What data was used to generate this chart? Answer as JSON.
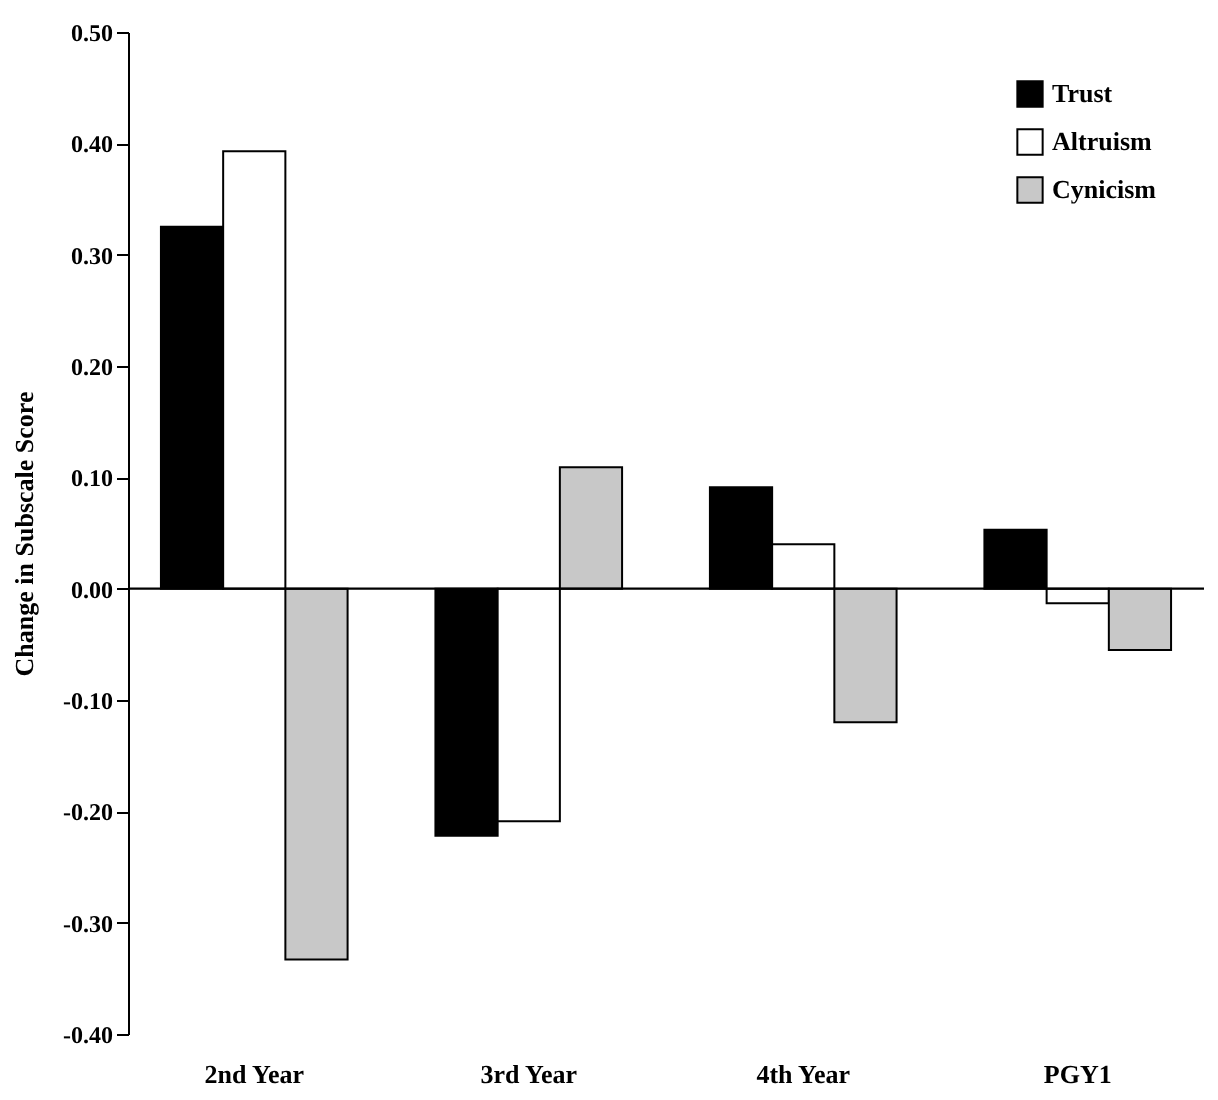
{
  "chart_data": {
    "type": "bar",
    "ylabel": "Change in Subscale Score",
    "categories": [
      "2nd Year",
      "3rd Year",
      "4th Year",
      "PGY1"
    ],
    "series": [
      {
        "name": "Trust",
        "color": "#000000",
        "values": [
          0.325,
          -0.222,
          0.091,
          0.053
        ]
      },
      {
        "name": "Altruism",
        "color": "#ffffff",
        "values": [
          0.393,
          -0.209,
          0.04,
          -0.013
        ]
      },
      {
        "name": "Cynicism",
        "color": "#c8c8c8",
        "values": [
          -0.333,
          0.109,
          -0.12,
          -0.055
        ]
      }
    ],
    "ylim": [
      -0.4,
      0.5
    ],
    "yticks": [
      {
        "value": -0.4,
        "label": "-0.40"
      },
      {
        "value": -0.3,
        "label": "-0.30"
      },
      {
        "value": -0.2,
        "label": "-0.20"
      },
      {
        "value": -0.1,
        "label": "-0.10"
      },
      {
        "value": 0,
        "label": "0.00"
      },
      {
        "value": 0.1,
        "label": "0.10"
      },
      {
        "value": 0.2,
        "label": "0.20"
      },
      {
        "value": 0.3,
        "label": "0.30"
      },
      {
        "value": 0.4,
        "label": "0.40"
      },
      {
        "value": 0.5,
        "label": "0.50"
      }
    ],
    "ref_lines": [
      {
        "axis": "y",
        "value": 0
      }
    ],
    "grid": false,
    "legend": "top right"
  }
}
